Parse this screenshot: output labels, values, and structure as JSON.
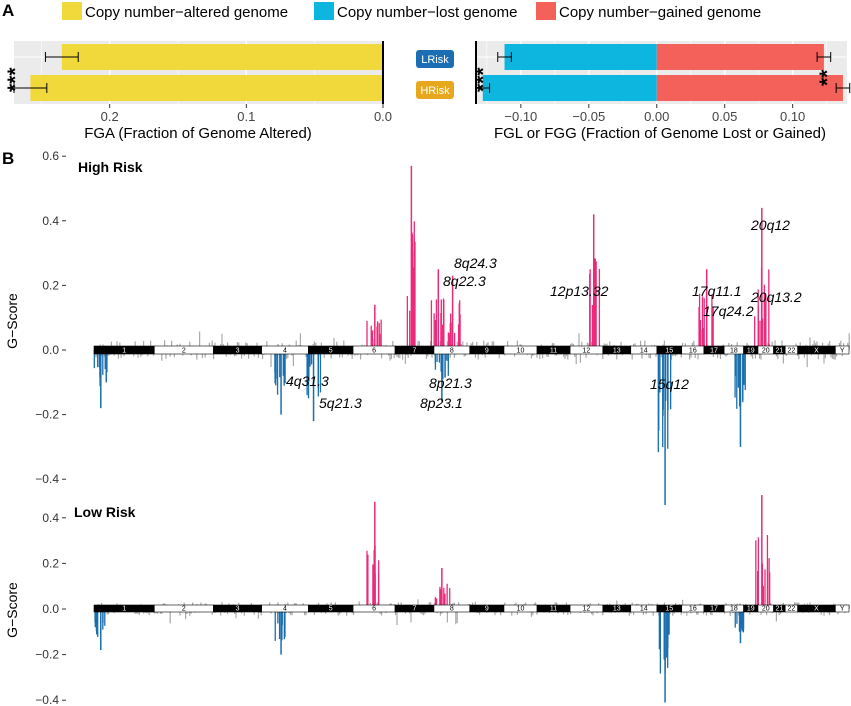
{
  "panel_labels": {
    "a": "A",
    "b": "B"
  },
  "colors": {
    "altered": "#F2D93B",
    "lost": "#0CB6DE",
    "gained": "#F4605A",
    "gscore_gain": "#EA2B7A",
    "gscore_loss": "#1B6EAE",
    "gscore_minor": "#AAAAAA",
    "lrisk_badge": "#1C6EB4",
    "hrisk_badge": "#E8A81D"
  },
  "legend": {
    "altered": "Copy number−altered genome",
    "lost": "Copy number−lost genome",
    "gained": "Copy number−gained genome"
  },
  "groups": {
    "low": "LRisk",
    "high": "HRisk"
  },
  "chart_data": [
    {
      "type": "bar",
      "id": "fga",
      "orientation": "horizontal",
      "x_reversed": true,
      "categories": [
        "LRisk",
        "HRisk"
      ],
      "values": [
        0.235,
        0.258
      ],
      "errors": [
        0.012,
        0.012
      ],
      "xlim": [
        0,
        0.27
      ],
      "xticks": [
        0.2,
        0.1,
        0.0
      ],
      "xtick_labels": [
        "0.2",
        "0.1",
        "0.0"
      ],
      "xlabel": "FGA (Fraction of Genome Altered)",
      "significance": "***"
    },
    {
      "type": "bar",
      "id": "fgl_fgg",
      "orientation": "horizontal",
      "categories": [
        "LRisk",
        "HRisk"
      ],
      "series": [
        {
          "name": "Copy number−lost genome",
          "values": [
            -0.112,
            -0.128
          ],
          "errors": [
            0.005,
            0.005
          ]
        },
        {
          "name": "Copy number−gained genome",
          "values": [
            0.123,
            0.137
          ],
          "errors": [
            0.005,
            0.005
          ]
        }
      ],
      "xlim": [
        -0.133,
        0.14
      ],
      "xticks": [
        -0.1,
        -0.05,
        0.0,
        0.05,
        0.1
      ],
      "xtick_labels": [
        "−0.10",
        "−0.05",
        "0.00",
        "0.05",
        "0.10"
      ],
      "xlabel": "FGL or FGG (Fraction of Genome Lost or Gained)",
      "significance_lost": "***",
      "significance_gained": "**"
    },
    {
      "type": "area",
      "id": "gscore_high",
      "title": "High Risk",
      "ylabel": "G−Score",
      "ylim": [
        -0.42,
        0.62
      ],
      "yticks": [
        0.6,
        0.4,
        0.2,
        0.0,
        -0.2,
        -0.4
      ],
      "ytick_labels": [
        "0.6",
        "0.4",
        "0.2",
        "0.0",
        "−0.2",
        "−0.4"
      ],
      "chromosomes": [
        "1",
        "2",
        "3",
        "4",
        "5",
        "6",
        "7",
        "8",
        "9",
        "10",
        "11",
        "12",
        "13",
        "14",
        "15",
        "16",
        "17",
        "18",
        "19",
        "20",
        "21",
        "22",
        "X",
        "Y"
      ],
      "gain_peaks": [
        [
          6.5,
          0.14
        ],
        [
          7.4,
          0.57
        ],
        [
          8.1,
          0.25
        ],
        [
          8.5,
          0.23
        ],
        [
          12.7,
          0.42
        ],
        [
          17.1,
          0.25
        ],
        [
          20.2,
          0.44
        ]
      ],
      "loss_peaks": [
        [
          1.1,
          -0.18
        ],
        [
          4.4,
          -0.2
        ],
        [
          5.1,
          -0.22
        ],
        [
          8.2,
          -0.16
        ],
        [
          15.3,
          -0.48
        ],
        [
          18.8,
          -0.3
        ]
      ],
      "annotations": [
        "8q24.3",
        "8q22.3",
        "12p13.32",
        "17q11.1",
        "17q24.2",
        "20q12",
        "20q13.2",
        "4q31.3",
        "5q21.3",
        "8p21.3",
        "8p23.1",
        "15q12"
      ]
    },
    {
      "type": "area",
      "id": "gscore_low",
      "title": "Low Risk",
      "ylabel": "G−Score",
      "ylim": [
        -0.42,
        0.52
      ],
      "yticks": [
        0.4,
        0.2,
        0.0,
        -0.2,
        -0.4
      ],
      "ytick_labels": [
        "0.4",
        "0.2",
        "0.0",
        "−0.2",
        "−0.4"
      ],
      "chromosomes": [
        "1",
        "2",
        "3",
        "4",
        "5",
        "6",
        "7",
        "8",
        "9",
        "10",
        "11",
        "12",
        "13",
        "14",
        "15",
        "16",
        "17",
        "18",
        "19",
        "20",
        "21",
        "22",
        "X",
        "Y"
      ],
      "gain_peaks": [
        [
          6.5,
          0.47
        ],
        [
          8.2,
          0.18
        ],
        [
          20.2,
          0.5
        ]
      ],
      "loss_peaks": [
        [
          1.1,
          -0.18
        ],
        [
          4.4,
          -0.2
        ],
        [
          15.3,
          -0.41
        ],
        [
          18.8,
          -0.15
        ]
      ]
    }
  ]
}
